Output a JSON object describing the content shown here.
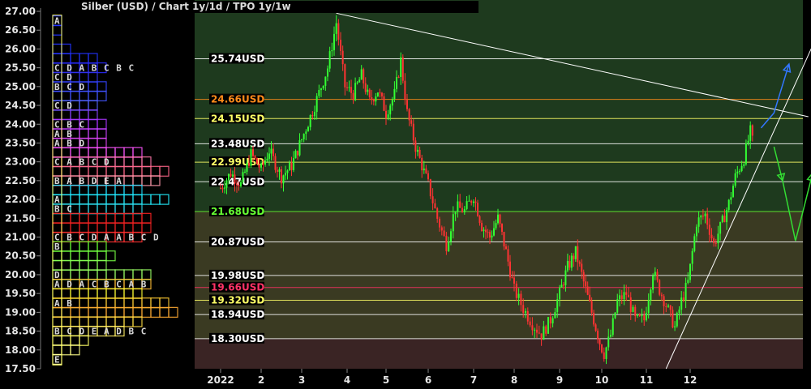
{
  "chart_data": {
    "type": "candlestick",
    "title": "Silber (USD) /  Chart 1y/1d / TPO 1y/1w",
    "ylim": [
      17.5,
      27.0
    ],
    "y_ticks": [
      "17.50",
      "18.00",
      "18.50",
      "19.00",
      "19.50",
      "20.00",
      "20.50",
      "21.00",
      "21.50",
      "22.00",
      "22.50",
      "23.00",
      "23.50",
      "24.00",
      "24.50",
      "25.00",
      "25.50",
      "26.00",
      "26.50",
      "27.00"
    ],
    "x_ticks": [
      "2022",
      "2",
      "3",
      "4",
      "5",
      "6",
      "7",
      "8",
      "9",
      "10",
      "11",
      "12"
    ],
    "price_levels": [
      {
        "label": "25.74USD",
        "value": 25.74,
        "color": "#ffffff"
      },
      {
        "label": "24.66USD",
        "value": 24.66,
        "color": "#ff8c1a"
      },
      {
        "label": "24.15USD",
        "value": 24.15,
        "color": "#ffff66"
      },
      {
        "label": "23.48USD",
        "value": 23.48,
        "color": "#ffffff"
      },
      {
        "label": "22.99USD",
        "value": 22.99,
        "color": "#ffff66"
      },
      {
        "label": "22.47USD",
        "value": 22.47,
        "color": "#ffffff"
      },
      {
        "label": "21.68USD",
        "value": 21.68,
        "color": "#66ff33"
      },
      {
        "label": "20.87USD",
        "value": 20.87,
        "color": "#ffffff"
      },
      {
        "label": "19.98USD",
        "value": 19.98,
        "color": "#ffffff"
      },
      {
        "label": "19.66USD",
        "value": 19.66,
        "color": "#ff3366"
      },
      {
        "label": "19.32USD",
        "value": 19.32,
        "color": "#ffff66"
      },
      {
        "label": "18.94USD",
        "value": 18.94,
        "color": "#ffffff"
      },
      {
        "label": "18.30USD",
        "value": 18.3,
        "color": "#ffffff"
      }
    ],
    "price_path": [
      [
        0.0,
        22.3
      ],
      [
        0.25,
        22.7
      ],
      [
        0.5,
        22.4
      ],
      [
        0.75,
        23.2
      ],
      [
        1.0,
        22.8
      ],
      [
        1.2,
        23.3
      ],
      [
        1.5,
        22.6
      ],
      [
        1.75,
        22.9
      ],
      [
        2.0,
        23.6
      ],
      [
        2.3,
        24.5
      ],
      [
        2.6,
        25.5
      ],
      [
        2.8,
        26.7
      ],
      [
        3.0,
        25.0
      ],
      [
        3.2,
        24.8
      ],
      [
        3.4,
        25.3
      ],
      [
        3.6,
        24.6
      ],
      [
        3.8,
        24.9
      ],
      [
        4.0,
        24.3
      ],
      [
        4.2,
        24.8
      ],
      [
        4.35,
        25.7
      ],
      [
        4.5,
        24.3
      ],
      [
        4.7,
        23.4
      ],
      [
        4.85,
        22.9
      ],
      [
        5.0,
        22.4
      ],
      [
        5.2,
        21.5
      ],
      [
        5.4,
        20.8
      ],
      [
        5.6,
        21.8
      ],
      [
        5.8,
        21.7
      ],
      [
        6.0,
        22.1
      ],
      [
        6.2,
        21.3
      ],
      [
        6.4,
        21.0
      ],
      [
        6.6,
        21.5
      ],
      [
        6.8,
        20.6
      ],
      [
        7.0,
        19.6
      ],
      [
        7.2,
        19.1
      ],
      [
        7.4,
        18.7
      ],
      [
        7.6,
        18.4
      ],
      [
        7.8,
        18.8
      ],
      [
        8.0,
        19.5
      ],
      [
        8.2,
        20.2
      ],
      [
        8.4,
        20.6
      ],
      [
        8.6,
        19.8
      ],
      [
        8.8,
        19.0
      ],
      [
        9.0,
        18.2
      ],
      [
        9.1,
        17.9
      ],
      [
        9.25,
        18.4
      ],
      [
        9.4,
        19.3
      ],
      [
        9.6,
        19.5
      ],
      [
        9.8,
        18.8
      ],
      [
        10.0,
        18.8
      ],
      [
        10.2,
        20.1
      ],
      [
        10.35,
        19.6
      ],
      [
        10.5,
        19.2
      ],
      [
        10.7,
        18.6
      ],
      [
        10.85,
        19.3
      ],
      [
        11.0,
        19.8
      ],
      [
        11.2,
        21.4
      ],
      [
        11.4,
        21.6
      ],
      [
        11.6,
        20.8
      ],
      [
        11.8,
        21.4
      ],
      [
        11.95,
        21.9
      ],
      [
        12.1,
        22.6
      ],
      [
        12.3,
        23.1
      ],
      [
        12.45,
        23.8
      ],
      [
        12.55,
        23.3
      ]
    ],
    "tpo_profile": [
      {
        "p": 26.75,
        "w": 1,
        "c": "#2233ff",
        "t": "A"
      },
      {
        "p": 26.5,
        "w": 1,
        "c": "#2233ff",
        "t": ""
      },
      {
        "p": 26.0,
        "w": 2,
        "c": "#2233ff",
        "t": ""
      },
      {
        "p": 25.75,
        "w": 5,
        "c": "#2233ff",
        "t": ""
      },
      {
        "p": 25.5,
        "w": 6,
        "c": "#2a2aff",
        "t": "C D A B C B C"
      },
      {
        "p": 25.25,
        "w": 5,
        "c": "#3333ee",
        "t": "C D"
      },
      {
        "p": 25.0,
        "w": 6,
        "c": "#3344ff",
        "t": "B C D"
      },
      {
        "p": 24.75,
        "w": 6,
        "c": "#4455ff",
        "t": ""
      },
      {
        "p": 24.5,
        "w": 5,
        "c": "#5566ff",
        "t": "C D"
      },
      {
        "p": 24.25,
        "w": 5,
        "c": "#8844ff",
        "t": ""
      },
      {
        "p": 24.0,
        "w": 6,
        "c": "#aa33ff",
        "t": "C B C"
      },
      {
        "p": 23.75,
        "w": 6,
        "c": "#cc44ff",
        "t": "A B"
      },
      {
        "p": 23.5,
        "w": 6,
        "c": "#dd44ee",
        "t": "A B D"
      },
      {
        "p": 23.25,
        "w": 10,
        "c": "#ff55ff",
        "t": ""
      },
      {
        "p": 23.0,
        "w": 11,
        "c": "#ff77aa",
        "t": "C A B C D"
      },
      {
        "p": 22.75,
        "w": 13,
        "c": "#ff6688",
        "t": ""
      },
      {
        "p": 22.5,
        "w": 12,
        "c": "#ff99aa",
        "t": "B A B D E A"
      },
      {
        "p": 22.25,
        "w": 10,
        "c": "#22ddff",
        "t": ""
      },
      {
        "p": 22.0,
        "w": 13,
        "c": "#22eeff",
        "t": "A"
      },
      {
        "p": 21.75,
        "w": 10,
        "c": "#33ddee",
        "t": "B C"
      },
      {
        "p": 21.5,
        "w": 11,
        "c": "#ff2222",
        "t": ""
      },
      {
        "p": 21.25,
        "w": 11,
        "c": "#ee2222",
        "t": ""
      },
      {
        "p": 21.0,
        "w": 10,
        "c": "#ff3333",
        "t": "C B C D A A B C D"
      },
      {
        "p": 20.75,
        "w": 6,
        "c": "#66ff33",
        "t": "B"
      },
      {
        "p": 20.5,
        "w": 7,
        "c": "#77ff44",
        "t": ""
      },
      {
        "p": 20.25,
        "w": 6,
        "c": "#88ff55",
        "t": ""
      },
      {
        "p": 20.0,
        "w": 11,
        "c": "#99ff66",
        "t": "D"
      },
      {
        "p": 19.75,
        "w": 11,
        "c": "#ffbb33",
        "t": "A D A C B C A B"
      },
      {
        "p": 19.5,
        "w": 10,
        "c": "#ffff33",
        "t": ""
      },
      {
        "p": 19.25,
        "w": 13,
        "c": "#ffcc33",
        "t": "A B"
      },
      {
        "p": 19.0,
        "w": 14,
        "c": "#ffaa33",
        "t": ""
      },
      {
        "p": 18.75,
        "w": 10,
        "c": "#ffdd44",
        "t": ""
      },
      {
        "p": 18.5,
        "w": 8,
        "c": "#ffee66",
        "t": "B C D E A D B C"
      },
      {
        "p": 18.25,
        "w": 4,
        "c": "#ffff66",
        "t": ""
      },
      {
        "p": 18.0,
        "w": 3,
        "c": "#ffff88",
        "t": ""
      },
      {
        "p": 17.75,
        "w": 1,
        "c": "#ffff99",
        "t": "E"
      }
    ],
    "lines": [
      {
        "name": "downtrend",
        "from": [
          2.8,
          26.95
        ],
        "to": [
          13.8,
          24.2
        ],
        "color": "#ffffff"
      },
      {
        "name": "uptrend",
        "from": [
          10.5,
          17.5
        ],
        "to": [
          14.3,
          27.1
        ],
        "color": "#ffffff"
      }
    ],
    "projections": [
      {
        "name": "bull",
        "color": "#3377ff",
        "points": [
          [
            12.7,
            23.9
          ],
          [
            13.0,
            24.3
          ],
          [
            13.35,
            25.6
          ]
        ]
      },
      {
        "name": "bear",
        "color": "#33dd33",
        "points": [
          [
            13.0,
            23.4
          ],
          [
            13.2,
            22.5
          ],
          [
            13.5,
            20.9
          ],
          [
            13.9,
            22.7
          ]
        ]
      }
    ],
    "colors": {
      "bg_upper": "#1e3a1e",
      "bg_mid": "#3a3a22",
      "bg_lower": "#3a2424",
      "up_candle": "#33ff33",
      "down_candle": "#ff3333"
    }
  }
}
